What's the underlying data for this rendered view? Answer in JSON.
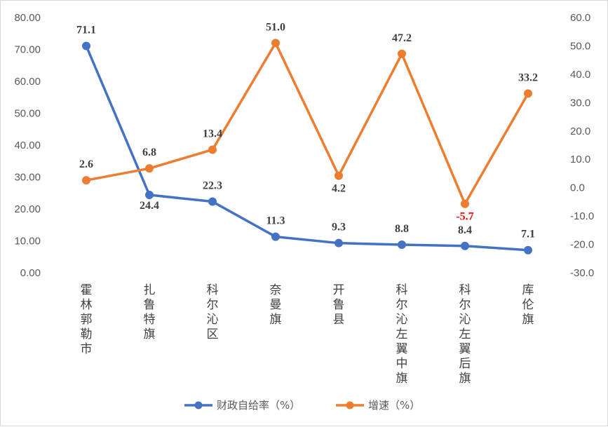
{
  "chart_data": {
    "type": "line",
    "categories": [
      "霍林郭勒市",
      "扎鲁特旗",
      "科尔沁区",
      "奈曼旗",
      "开鲁县",
      "科尔沁左翼中旗",
      "科尔沁左翼后旗",
      "库伦旗"
    ],
    "series": [
      {
        "name": "财政自给率（%）",
        "axis": "left",
        "color": "#4472c4",
        "values": [
          71.1,
          24.4,
          22.3,
          11.3,
          9.3,
          8.8,
          8.4,
          7.1
        ],
        "labels": [
          "71.1",
          "24.4",
          "22.3",
          "11.3",
          "9.3",
          "8.8",
          "8.4",
          "7.1"
        ]
      },
      {
        "name": "增速（%）",
        "axis": "right",
        "color": "#ed7d31",
        "values": [
          2.6,
          6.8,
          13.4,
          51.0,
          4.2,
          47.2,
          -5.7,
          33.2
        ],
        "labels": [
          "2.6",
          "6.8",
          "13.4",
          "51.0",
          "4.2",
          "47.2",
          "-5.7",
          "33.2"
        ]
      }
    ],
    "y_left": {
      "ylim": [
        0,
        80
      ],
      "ticks": [
        "0.00",
        "10.00",
        "20.00",
        "30.00",
        "40.00",
        "50.00",
        "60.00",
        "70.00",
        "80.00"
      ]
    },
    "y_right": {
      "ylim": [
        -30,
        60
      ],
      "ticks": [
        "-30.0",
        "-20.0",
        "-10.0",
        "0.0",
        "10.0",
        "20.0",
        "30.0",
        "40.0",
        "50.0",
        "60.0"
      ]
    },
    "negative_label_color": "#ff0000",
    "grid": false,
    "legend": "bottom",
    "title": ""
  }
}
